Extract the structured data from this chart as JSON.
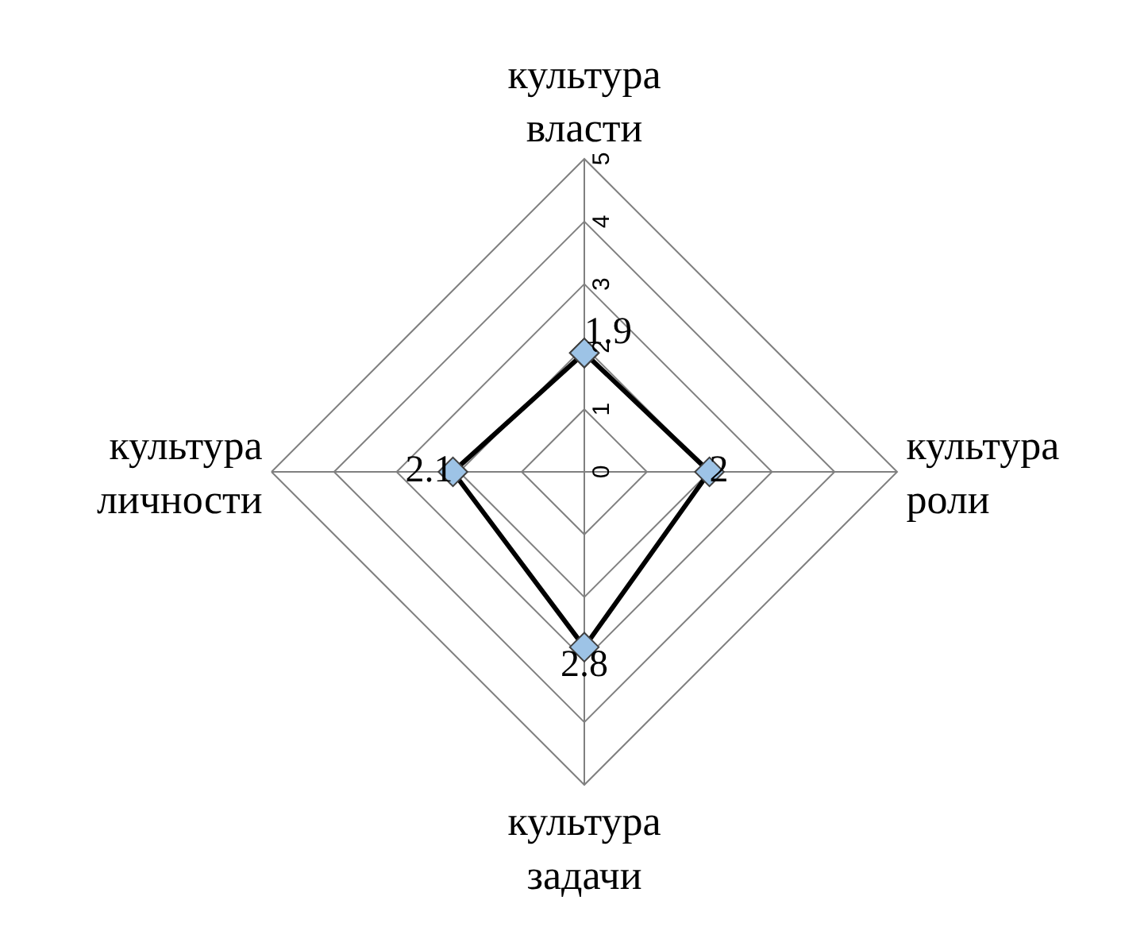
{
  "chart_data": {
    "type": "radar",
    "categories": [
      "культура власти",
      "культура роли",
      "культура задачи",
      "культура личности"
    ],
    "series": [
      {
        "color": "#000000",
        "values": [
          1.9,
          2,
          2.8,
          2.1
        ]
      }
    ],
    "ylim": [
      0,
      5
    ],
    "yticks": [
      0,
      1,
      2,
      3,
      4,
      5
    ],
    "data_labels": true,
    "marker": "diamond",
    "line_style": "solid",
    "grid": true,
    "legend": false
  }
}
